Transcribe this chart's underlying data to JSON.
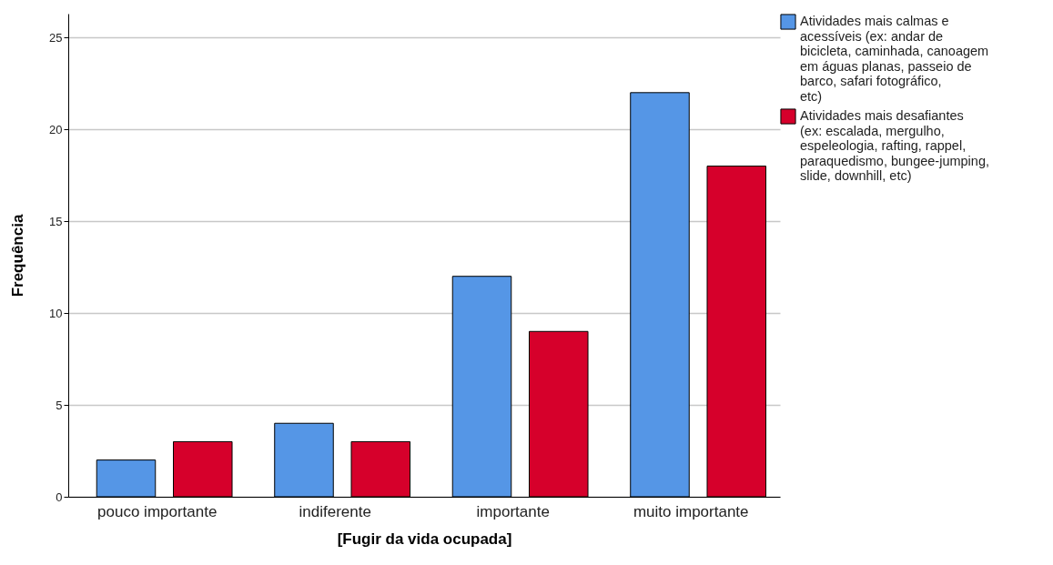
{
  "chart_data": {
    "type": "bar",
    "xlabel": "[Fugir da vida ocupada]",
    "ylabel": "Frequência",
    "categories": [
      "pouco importante",
      "indiferente",
      "importante",
      "muito importante"
    ],
    "series": [
      {
        "name": "Atividades mais calmas e acessíveis (ex: andar de bicicleta, caminhada, canoagem em águas planas, passeio de barco, safari fotográfico, etc)",
        "color": "#5596e6",
        "values": [
          2,
          4,
          12,
          22
        ]
      },
      {
        "name": "Atividades mais desafiantes (ex: escalada, mergulho, espeleologia, rafting, rappel, paraquedismo, bungee-jumping, slide, downhill, etc)",
        "color": "#d6002b",
        "values": [
          3,
          3,
          9,
          18
        ]
      }
    ],
    "ylim": [
      0,
      26.3
    ],
    "yticks": [
      0,
      5,
      10,
      15,
      20,
      25
    ],
    "grid": "y",
    "legend": "top right"
  }
}
